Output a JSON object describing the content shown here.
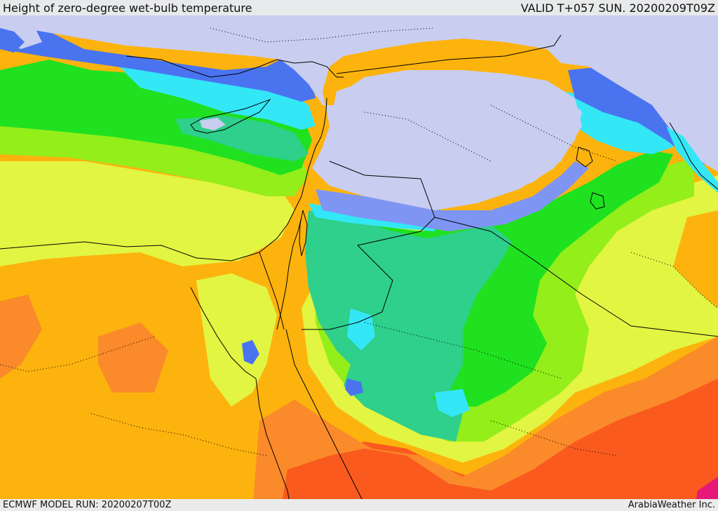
{
  "header": {
    "title": "Height of zero-degree wet-bulb temperature",
    "valid_time": "VALID T+057 SUN. 20200209T09Z"
  },
  "footer": {
    "model_run": "ECMWF MODEL RUN: 20200207T00Z",
    "credit": "ArabiaWeather Inc."
  },
  "map": {
    "colors": {
      "sea": "#c9cdef",
      "blue": "#4a73f0",
      "light_blue": "#7f95f4",
      "cyan": "#33e7f7",
      "teal": "#2fcf8c",
      "green": "#1fe120",
      "yellow_green": "#93ee1a",
      "yellow": "#e2f542",
      "orange": "#fdb30d",
      "dark_orange": "#fa8a2a",
      "red": "#fa5a1e",
      "magenta": "#e6197a",
      "border": "#000000"
    }
  }
}
